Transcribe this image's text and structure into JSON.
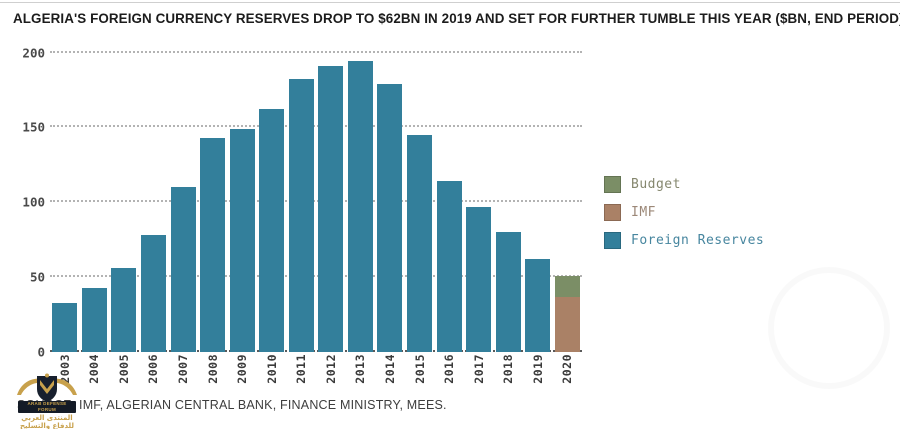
{
  "title": "ALGERIA'S FOREIGN CURRENCY RESERVES DROP TO $62BN IN 2019 AND SET FOR FURTHER TUMBLE THIS YEAR ($BN, END PERIOD)",
  "source": "SOURCE: IMF, ALGERIAN CENTRAL BANK, FINANCE MINISTRY, MEES.",
  "watermark": {
    "line1": "ARAB DEFENSE FORUM",
    "line2": "المنتدى العربي للدفاع والتسليح"
  },
  "colors": {
    "foreign_reserves": "#337f9b",
    "imf": "#aa8166",
    "budget": "#7b8e66",
    "grid": "#b3b3b3",
    "baseline": "#5a5a5a",
    "axis_text": "#3b3b3b",
    "title_text": "#1c1c1c"
  },
  "legend": [
    {
      "label": "Budget",
      "color": "#7b8e66",
      "text_color": "#85876e"
    },
    {
      "label": "IMF",
      "color": "#aa8166",
      "text_color": "#9c8878"
    },
    {
      "label": "Foreign Reserves",
      "color": "#337f9b",
      "text_color": "#47869f"
    }
  ],
  "chart_data": {
    "type": "bar",
    "stacked": true,
    "title": "ALGERIA'S FOREIGN CURRENCY RESERVES DROP TO $62BN IN 2019 AND SET FOR FURTHER TUMBLE THIS YEAR ($BN, END PERIOD)",
    "xlabel": "",
    "ylabel": "$bn, end period",
    "ylim": [
      0,
      205
    ],
    "yticks": [
      0,
      50,
      100,
      150,
      200
    ],
    "grid": "dotted horizontal",
    "legend_position": "right",
    "categories": [
      "2003",
      "2004",
      "2005",
      "2006",
      "2007",
      "2008",
      "2009",
      "2010",
      "2011",
      "2012",
      "2013",
      "2014",
      "2015",
      "2016",
      "2017",
      "2018",
      "2019",
      "2020"
    ],
    "series": [
      {
        "name": "Foreign Reserves",
        "color": "#337f9b",
        "values": [
          33,
          43,
          56,
          78,
          110,
          143,
          149,
          162,
          182,
          191,
          194,
          179,
          145,
          114,
          97,
          80,
          62,
          0
        ]
      },
      {
        "name": "IMF",
        "color": "#aa8166",
        "values": [
          0,
          0,
          0,
          0,
          0,
          0,
          0,
          0,
          0,
          0,
          0,
          0,
          0,
          0,
          0,
          0,
          0,
          37
        ]
      },
      {
        "name": "Budget",
        "color": "#7b8e66",
        "values": [
          0,
          0,
          0,
          0,
          0,
          0,
          0,
          0,
          0,
          0,
          0,
          0,
          0,
          0,
          0,
          0,
          0,
          14
        ]
      }
    ],
    "projections_2020": {
      "imf_total": 37,
      "budget_total": 51
    },
    "note": "2020 bar is a stacked projection: IMF segment 0-37, Budget segment 37-51"
  }
}
